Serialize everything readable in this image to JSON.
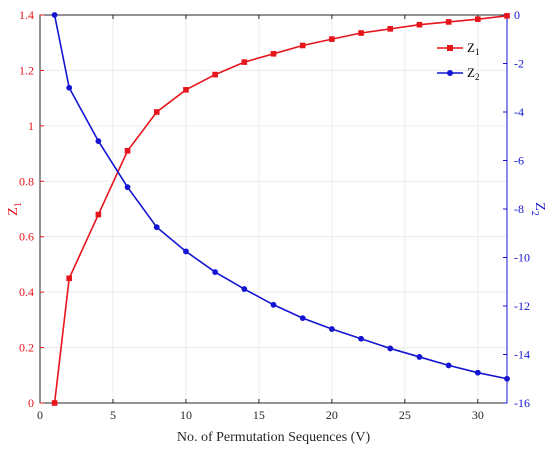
{
  "chart_data": {
    "type": "line",
    "title": "",
    "xlabel": "No. of Permutation Sequences (V)",
    "xlim": [
      0,
      32
    ],
    "xticks": [
      0,
      5,
      10,
      15,
      20,
      25,
      30
    ],
    "grid": true,
    "legend_position": "top-right",
    "left_axis": {
      "label_main": "Z",
      "label_sub": "1",
      "ylim": [
        0,
        1.4
      ],
      "ticks": [
        0,
        0.2,
        0.4,
        0.6,
        0.8,
        1,
        1.2,
        1.4
      ],
      "color": "#e8141c"
    },
    "right_axis": {
      "label_main": "Z",
      "label_sub": "2",
      "ylim": [
        -16,
        0
      ],
      "ticks": [
        0,
        -2,
        -4,
        -6,
        -8,
        -10,
        -12,
        -14,
        -16
      ],
      "color": "#1414d2"
    },
    "series": [
      {
        "name_main": "Z",
        "name_sub": "1",
        "axis": "left",
        "color": "#e8141c",
        "marker": "square",
        "x": [
          1,
          2,
          4,
          6,
          8,
          10,
          12,
          14,
          16,
          18,
          20,
          22,
          24,
          26,
          28,
          30,
          32
        ],
        "y": [
          0,
          0.45,
          0.68,
          0.91,
          1.05,
          1.13,
          1.185,
          1.23,
          1.26,
          1.29,
          1.313,
          1.335,
          1.35,
          1.365,
          1.375,
          1.385,
          1.397
        ]
      },
      {
        "name_main": "Z",
        "name_sub": "2",
        "axis": "right",
        "color": "#1414d2",
        "marker": "circle",
        "x": [
          1,
          2,
          4,
          6,
          8,
          10,
          12,
          14,
          16,
          18,
          20,
          22,
          24,
          26,
          28,
          30,
          32
        ],
        "y": [
          0,
          -3.0,
          -5.2,
          -7.1,
          -8.75,
          -9.75,
          -10.6,
          -11.3,
          -11.95,
          -12.5,
          -12.95,
          -13.35,
          -13.75,
          -14.1,
          -14.45,
          -14.75,
          -15.0
        ]
      }
    ]
  }
}
